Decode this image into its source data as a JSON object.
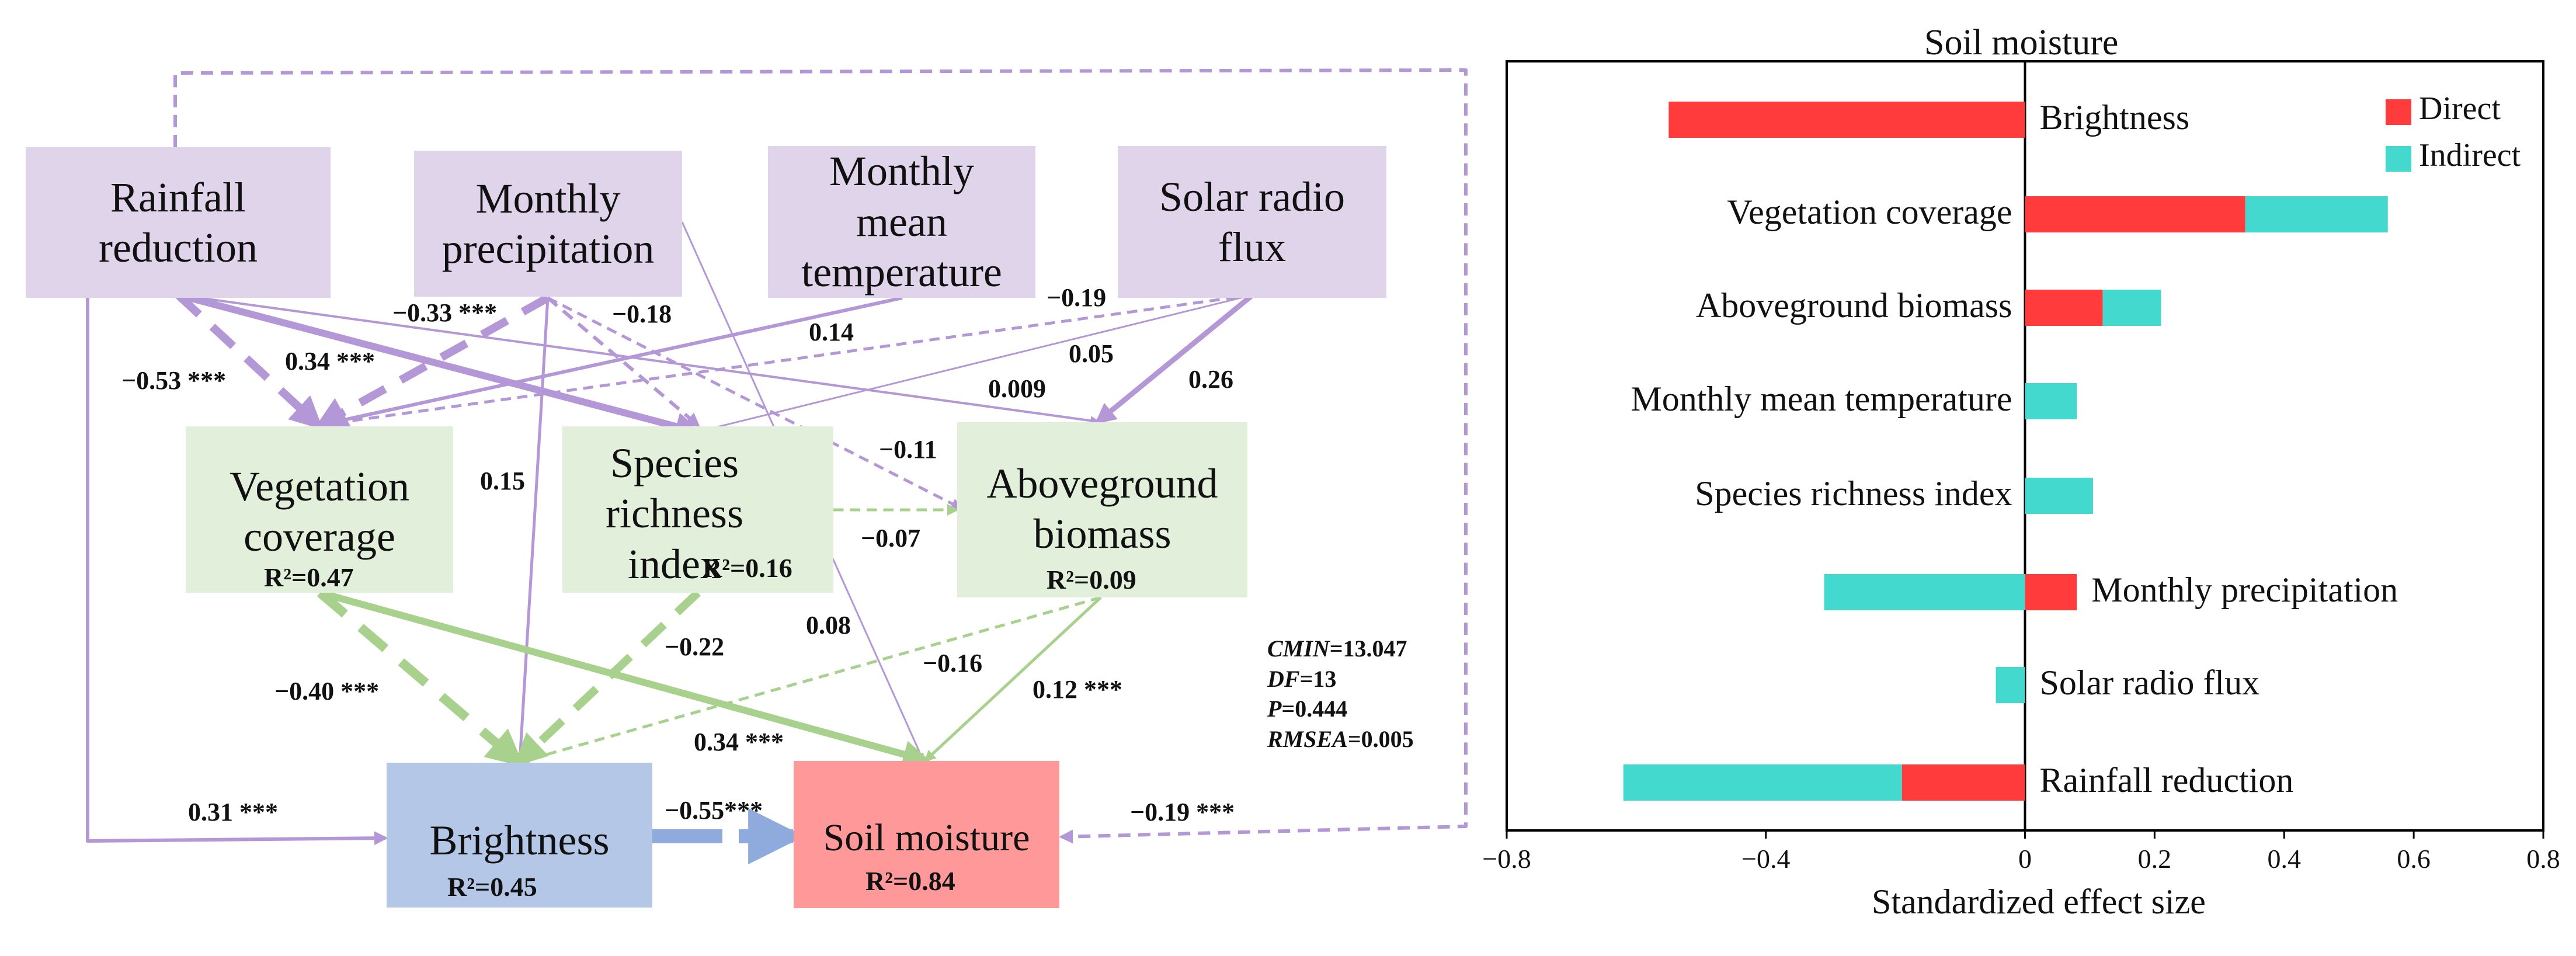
{
  "diagram": {
    "nodes": {
      "rainfall": {
        "label": "Rainfall\nreduction"
      },
      "precip": {
        "label": "Monthly\nprecipitation"
      },
      "temp": {
        "label": "Monthly\nmean\ntemperature"
      },
      "solar": {
        "label": "Solar radio\nflux"
      },
      "veg": {
        "label": "Vegetation\ncoverage",
        "r2": "R²=0.47"
      },
      "species": {
        "label": "Species\nrichness\nindex",
        "r2": "R²=0.16"
      },
      "biomass": {
        "label": "Aboveground\nbiomass",
        "r2": "R²=0.09"
      },
      "bright": {
        "label": "Brightness",
        "r2": "R²=0.45"
      },
      "soil": {
        "label": "Soil moisture",
        "r2": "R²=0.84"
      }
    },
    "paths": [
      {
        "from": "rainfall",
        "to": "veg",
        "coef": "−0.53 ***",
        "style": "dashed"
      },
      {
        "from": "rainfall",
        "to": "species",
        "coef": "0.34 ***",
        "style": "solid"
      },
      {
        "from": "rainfall",
        "to": "biomass",
        "coef": "0.009",
        "style": "solid"
      },
      {
        "from": "rainfall",
        "to": "bright",
        "coef": "0.31 ***",
        "style": "solid"
      },
      {
        "from": "rainfall",
        "to": "soil",
        "coef": "−0.19 ***",
        "style": "dashed"
      },
      {
        "from": "precip",
        "to": "veg",
        "coef": "−0.33 ***",
        "style": "dashed"
      },
      {
        "from": "precip",
        "to": "species",
        "coef": "−0.18",
        "style": "dashed"
      },
      {
        "from": "precip",
        "to": "biomass",
        "coef": "−0.11",
        "style": "dashed"
      },
      {
        "from": "precip",
        "to": "bright",
        "coef": "0.15",
        "style": "solid"
      },
      {
        "from": "precip",
        "to": "soil",
        "coef": "0.08",
        "style": "solid"
      },
      {
        "from": "temp",
        "to": "veg",
        "coef": "0.14",
        "style": "solid"
      },
      {
        "from": "solar",
        "to": "veg",
        "coef": "−0.19",
        "style": "dashed"
      },
      {
        "from": "solar",
        "to": "species",
        "coef": "0.05",
        "style": "solid"
      },
      {
        "from": "solar",
        "to": "biomass",
        "coef": "0.26",
        "style": "solid"
      },
      {
        "from": "species",
        "to": "biomass",
        "coef": "−0.07",
        "style": "dashed"
      },
      {
        "from": "veg",
        "to": "bright",
        "coef": "−0.40 ***",
        "style": "dashed"
      },
      {
        "from": "veg",
        "to": "soil",
        "coef": "0.34 ***",
        "style": "solid"
      },
      {
        "from": "species",
        "to": "bright",
        "coef": "−0.22",
        "style": "dashed"
      },
      {
        "from": "biomass",
        "to": "bright",
        "coef": "−0.16",
        "style": "dashed"
      },
      {
        "from": "biomass",
        "to": "soil",
        "coef": "0.12 ***",
        "style": "solid"
      },
      {
        "from": "bright",
        "to": "soil",
        "coef": "−0.55***",
        "style": "dashed"
      }
    ],
    "fit": [
      {
        "key": "CMIN",
        "value": "=13.047"
      },
      {
        "key": "DF",
        "value": "=13"
      },
      {
        "key": "P",
        "value": "=0.444"
      },
      {
        "key": "RMSEA",
        "value": "=0.005"
      }
    ]
  },
  "chart_data": {
    "type": "bar",
    "orientation": "horizontal",
    "stacked": true,
    "title": "Soil moisture",
    "xlabel": "Standardized effect size",
    "ylabel": "",
    "xlim": [
      -0.8,
      0.8
    ],
    "xticks": [
      "−0.8",
      "−0.4",
      "0",
      "0.2",
      "0.4",
      "0.6",
      "0.8"
    ],
    "xtick_values": [
      -0.8,
      -0.4,
      0,
      0.2,
      0.4,
      0.6,
      0.8
    ],
    "categories": [
      "Brightness",
      "Vegetation coverage",
      "Aboveground biomass",
      "Monthly mean temperature",
      "Species richness index",
      "Monthly precipitation",
      "Solar radio flux",
      "Rainfall reduction"
    ],
    "series": [
      {
        "name": "Direct",
        "color": "#ff3b3b",
        "values": [
          -0.55,
          0.34,
          0.12,
          0,
          0,
          0.08,
          0,
          -0.19
        ]
      },
      {
        "name": "Indirect",
        "color": "#44d9cf",
        "values": [
          0,
          0.22,
          0.09,
          0.08,
          0.105,
          -0.31,
          -0.045,
          -0.43
        ]
      }
    ],
    "legend": {
      "position": "top-right"
    }
  },
  "colors": {
    "purple_box": "#e0d4ea",
    "green_box": "#e2efda",
    "blue_box": "#b4c7e7",
    "red_box": "#ff9999",
    "purple_line": "#b497d6",
    "green_line": "#a9d18e",
    "blue_line": "#8faadc"
  }
}
